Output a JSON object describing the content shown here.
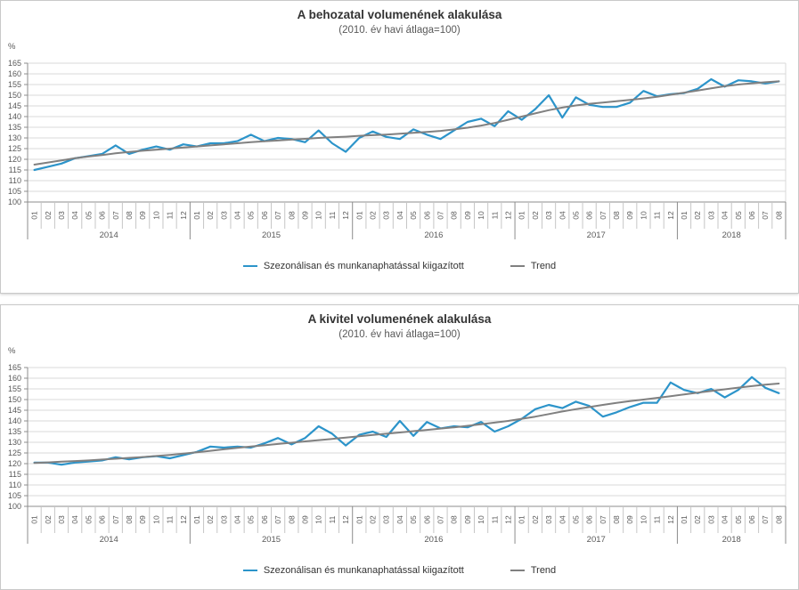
{
  "colors": {
    "adjusted": "#2C94CA",
    "trend": "#808080",
    "grid": "#d9d9d9",
    "axis": "#8c8c8c",
    "tick_minor": "#c6c6c6",
    "label": "#595959",
    "title": "#333333",
    "panel_border": "#c9c9c9"
  },
  "axis": {
    "unit_label": "%",
    "y_min": 100,
    "y_max": 165,
    "y_step": 5,
    "months": [
      "01",
      "02",
      "03",
      "04",
      "05",
      "06",
      "07",
      "08",
      "09",
      "10",
      "11",
      "12",
      "01",
      "02",
      "03",
      "04",
      "05",
      "06",
      "07",
      "08",
      "09",
      "10",
      "11",
      "12",
      "01",
      "02",
      "03",
      "04",
      "05",
      "06",
      "07",
      "08",
      "09",
      "10",
      "11",
      "12",
      "01",
      "02",
      "03",
      "04",
      "05",
      "06",
      "07",
      "08",
      "09",
      "10",
      "11",
      "12",
      "01",
      "02",
      "03",
      "04",
      "05",
      "06",
      "07",
      "08"
    ],
    "years": [
      {
        "label": "2014",
        "months": 12
      },
      {
        "label": "2015",
        "months": 12
      },
      {
        "label": "2016",
        "months": 12
      },
      {
        "label": "2017",
        "months": 12
      },
      {
        "label": "2018",
        "months": 8
      }
    ]
  },
  "chart_data": [
    {
      "type": "line",
      "title": "A behozatal volumenének alakulása",
      "subtitle": "(2010. év havi átlaga=100)",
      "ylabel": "%",
      "ylim": [
        100,
        165
      ],
      "grid": true,
      "legend_position": "bottom",
      "series": [
        {
          "name": "Szezonálisan és munkanaphatással kiigazított",
          "color": "#2C94CA",
          "values": [
            115,
            116.5,
            118,
            120.5,
            121.5,
            122.5,
            126.5,
            122.5,
            124.5,
            126,
            124.5,
            127,
            126,
            127.5,
            127.5,
            128.5,
            131.5,
            128.5,
            130,
            129.5,
            128,
            133.5,
            127.5,
            123.5,
            130,
            133,
            130.5,
            129.5,
            134,
            131.5,
            129.5,
            133.5,
            137.5,
            139,
            135.5,
            142.5,
            138.5,
            143.5,
            150,
            139.5,
            149,
            145.5,
            144.5,
            144.5,
            146.5,
            152,
            149.5,
            150.5,
            151,
            153,
            157.5,
            154,
            157,
            156.5,
            155.5,
            156.5
          ]
        },
        {
          "name": "Trend",
          "color": "#808080",
          "values": [
            117.5,
            118.5,
            119.5,
            120.5,
            121.3,
            122,
            122.8,
            123.4,
            124,
            124.5,
            125,
            125.5,
            126,
            126.5,
            127,
            127.5,
            128,
            128.4,
            128.8,
            129.2,
            129.6,
            130,
            130.3,
            130.6,
            131,
            131.3,
            131.6,
            132,
            132.4,
            132.8,
            133.3,
            134,
            134.8,
            135.8,
            137,
            138.5,
            140,
            141.5,
            143,
            144.2,
            145.2,
            146,
            146.6,
            147.2,
            147.8,
            148.5,
            149.3,
            150.2,
            151.2,
            152.2,
            153.2,
            154.2,
            155,
            155.6,
            156.1,
            156.5
          ]
        }
      ]
    },
    {
      "type": "line",
      "title": "A kivitel volumenének alakulása",
      "subtitle": "(2010. év havi átlaga=100)",
      "ylabel": "%",
      "ylim": [
        100,
        165
      ],
      "grid": true,
      "legend_position": "bottom",
      "series": [
        {
          "name": "Szezonálisan és munkanaphatással kiigazított",
          "color": "#2C94CA",
          "values": [
            120.5,
            120.5,
            119.5,
            120.5,
            121,
            121.5,
            123,
            122,
            123,
            123.5,
            122.5,
            124,
            125.5,
            128,
            127.5,
            128,
            127.5,
            129.5,
            132,
            129,
            132,
            137.5,
            134,
            128.5,
            133.5,
            135,
            132.5,
            140,
            133,
            139.5,
            136.5,
            137.5,
            137,
            139.5,
            135,
            137.5,
            141,
            145.5,
            147.5,
            146,
            149,
            147,
            142,
            144,
            146.5,
            148.5,
            148.5,
            158,
            154.5,
            153,
            155,
            151,
            154.5,
            160.5,
            155.5,
            153
          ]
        },
        {
          "name": "Trend",
          "color": "#808080",
          "values": [
            120.3,
            120.6,
            120.9,
            121.2,
            121.5,
            121.9,
            122.3,
            122.7,
            123.1,
            123.6,
            124.1,
            124.7,
            125.3,
            126,
            126.7,
            127.4,
            128,
            128.6,
            129.2,
            129.8,
            130.4,
            131,
            131.6,
            132.2,
            132.8,
            133.4,
            134,
            134.6,
            135.2,
            135.8,
            136.4,
            137,
            137.7,
            138.4,
            139.2,
            140,
            141,
            142,
            143.2,
            144.4,
            145.5,
            146.5,
            147.5,
            148.4,
            149.3,
            150,
            150.8,
            151.6,
            152.4,
            153.2,
            154,
            154.8,
            155.6,
            156.3,
            157,
            157.5
          ]
        }
      ]
    }
  ]
}
